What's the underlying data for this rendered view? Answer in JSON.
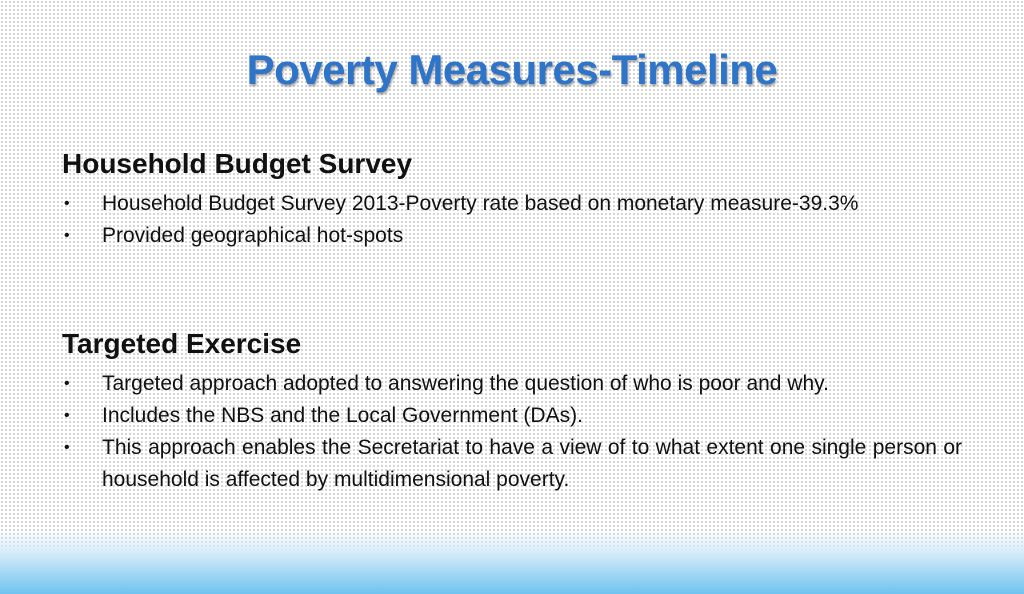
{
  "slide": {
    "title": "Poverty Measures-Timeline",
    "sections": [
      {
        "heading": "Household Budget Survey",
        "bullets": [
          "Household Budget Survey 2013-Poverty rate based on monetary measure-39.3%",
          "Provided geographical hot-spots"
        ]
      },
      {
        "heading": "Targeted Exercise",
        "bullets": [
          "Targeted approach adopted to answering the question of who is poor and why.",
          "Includes the NBS and the Local Government (DAs).",
          "This approach enables the Secretariat to have a view of to what extent one single person or household is affected by multidimensional poverty."
        ]
      }
    ],
    "bullet_symbol": "•",
    "colors": {
      "title": "#2e74c9",
      "text": "#111111",
      "band": "#6fc3ee"
    }
  }
}
